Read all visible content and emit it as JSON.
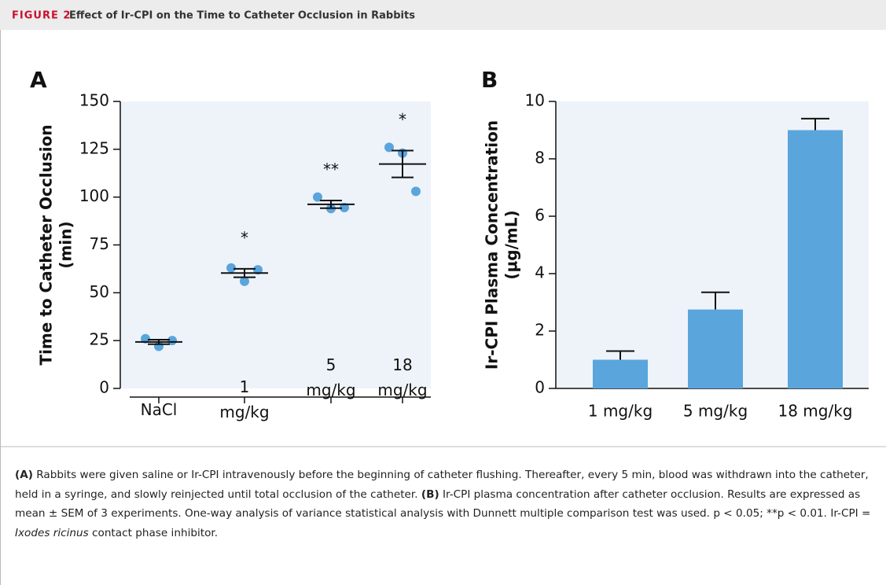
{
  "header": {
    "label": "FIGURE 2",
    "title": "Effect of Ir-CPI on the Time to Catheter Occlusion in Rabbits"
  },
  "chart_data": [
    {
      "type": "scatter",
      "panel": "A",
      "categories": [
        "NaCl",
        "1 mg/kg",
        "5 mg/kg",
        "18 mg/kg"
      ],
      "points": [
        [
          26,
          22,
          25
        ],
        [
          63,
          56,
          62
        ],
        [
          100,
          94,
          94.5
        ],
        [
          126,
          123,
          103
        ]
      ],
      "means": [
        24.3,
        60.3,
        96.2,
        117.3
      ],
      "sem": [
        1.2,
        2.2,
        2,
        7
      ],
      "annotations": [
        null,
        "*",
        "**",
        "*"
      ],
      "ylabel": [
        "Time to Catheter Occlusion",
        "(min)"
      ],
      "ylim": [
        0,
        150
      ],
      "yticks": [
        0,
        25,
        50,
        75,
        100,
        125,
        150
      ],
      "color": "#5aa5dc",
      "mean_color": "#111111",
      "background": "#eef3fa"
    },
    {
      "type": "bar",
      "panel": "B",
      "categories": [
        "1 mg/kg",
        "5 mg/kg",
        "18 mg/kg"
      ],
      "values": [
        1.0,
        2.75,
        9.0
      ],
      "errors": [
        0.3,
        0.6,
        0.4
      ],
      "ylabel": [
        "Ir-CPI Plasma Concentration",
        "(µg/mL)"
      ],
      "ylim": [
        0,
        10
      ],
      "yticks": [
        0,
        2,
        4,
        6,
        8,
        10
      ],
      "color": "#5aa5dc",
      "background": "#eef3fa"
    }
  ],
  "caption": [
    "(A)",
    " Rabbits were given saline or Ir-CPI intravenously before the beginning of catheter flushing. Thereafter, every 5 min, blood was withdrawn into the catheter, held in a syringe, and slowly reinjected until total occlusion of the catheter. ",
    "(B)",
    " Ir-CPI plasma concentration after catheter occlusion. Results are expressed as mean ± SEM of 3 experiments. One-way analysis of variance statistical analysis with Dunnett multiple comparison test was used. p < 0.05; **p < 0.01. Ir-CPI = ",
    "Ixodes ricinus",
    " contact phase inhibitor."
  ]
}
